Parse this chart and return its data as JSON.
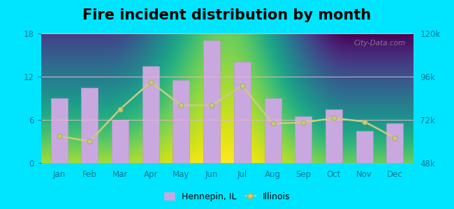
{
  "title": "Fire incident distribution by month",
  "months": [
    "Jan",
    "Feb",
    "Mar",
    "Apr",
    "May",
    "Jun",
    "Jul",
    "Aug",
    "Sep",
    "Oct",
    "Nov",
    "Dec"
  ],
  "bar_values": [
    9,
    10.5,
    6,
    13.5,
    11.5,
    17,
    14,
    9,
    6.5,
    7.5,
    4.5,
    5.5
  ],
  "line_values": [
    63000,
    60000,
    78000,
    93000,
    80000,
    80000,
    91000,
    70000,
    70500,
    73000,
    71000,
    62000
  ],
  "bar_color": "#c9a8e0",
  "bar_edge_color": "#b898cc",
  "line_color": "#c8cc80",
  "line_marker": "o",
  "line_marker_color": "#c8cc80",
  "background_outer": "#00e5ff",
  "ylim_left": [
    0,
    18
  ],
  "ylim_right": [
    48000,
    120000
  ],
  "yticks_left": [
    0,
    6,
    12,
    18
  ],
  "yticks_right": [
    48000,
    72000,
    96000,
    120000
  ],
  "ytick_right_labels": [
    "48k",
    "72k",
    "96k",
    "120k"
  ],
  "title_fontsize": 15,
  "watermark": "City-Data.com",
  "legend_hennepin": "Hennepin, IL",
  "legend_illinois": "Illinois"
}
